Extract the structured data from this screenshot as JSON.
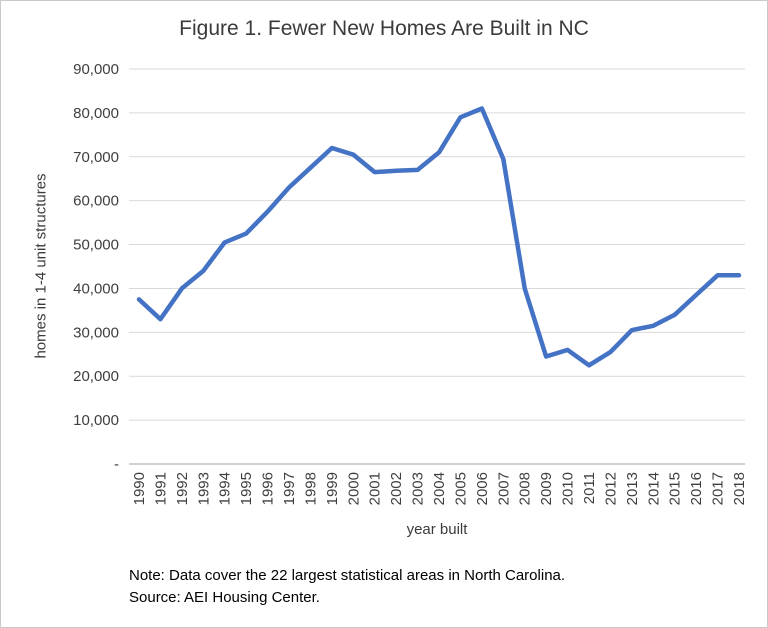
{
  "figure": {
    "title": "Figure 1. Fewer New Homes Are Built in NC",
    "note_line1": "Note: Data cover the 22 largest statistical areas in North Carolina.",
    "note_line2": "Source: AEI Housing Center."
  },
  "chart_data": {
    "type": "line",
    "title": "Figure 1. Fewer New Homes Are Built in NC",
    "xlabel": "year built",
    "ylabel": "homes in 1-4 unit structures",
    "x": [
      "1990",
      "1991",
      "1992",
      "1993",
      "1994",
      "1995",
      "1996",
      "1997",
      "1998",
      "1999",
      "2000",
      "2001",
      "2002",
      "2003",
      "2004",
      "2005",
      "2006",
      "2007",
      "2008",
      "2009",
      "2010",
      "2011",
      "2012",
      "2013",
      "2014",
      "2015",
      "2016",
      "2017",
      "2018"
    ],
    "values": [
      37500,
      33000,
      40000,
      44000,
      50500,
      52500,
      57500,
      63000,
      67500,
      72000,
      70500,
      66500,
      66800,
      67000,
      71000,
      79000,
      81000,
      69500,
      40000,
      24500,
      26000,
      22500,
      25500,
      30500,
      31500,
      34000,
      38500,
      43000,
      43000
    ],
    "ylim": [
      0,
      90000
    ],
    "ytick_step": 10000,
    "ytick_labels": [
      "-",
      "10,000",
      "20,000",
      "30,000",
      "40,000",
      "50,000",
      "60,000",
      "70,000",
      "80,000",
      "90,000"
    ],
    "grid": true,
    "legend": "none",
    "line_color": "#4472C4",
    "grid_color": "#D9D9D9",
    "axis_color": "#A6A6A6"
  }
}
